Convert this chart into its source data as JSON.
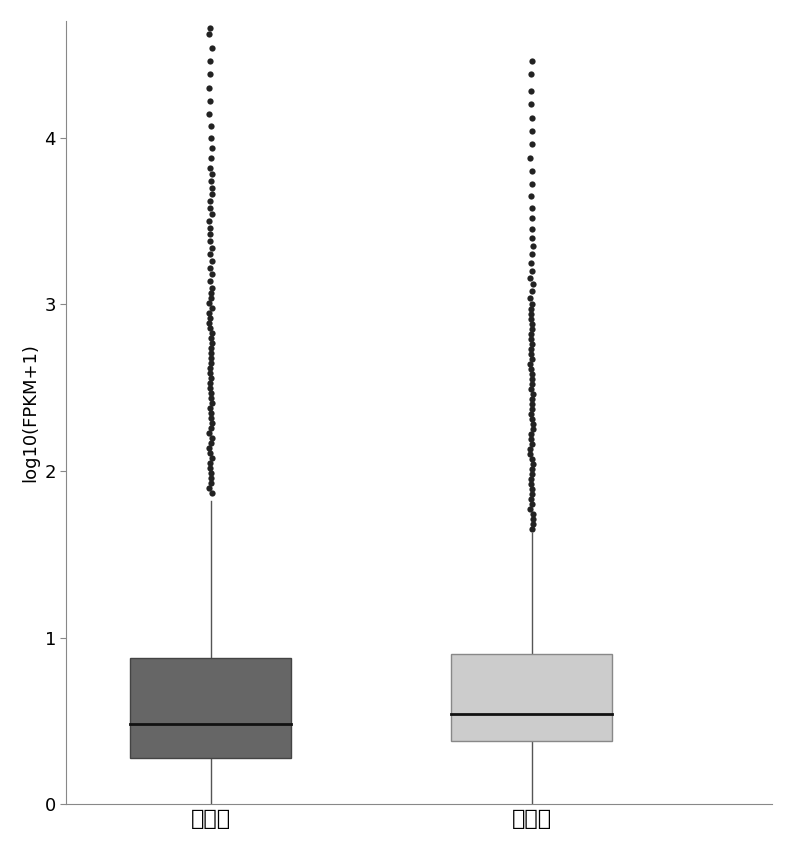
{
  "categories": [
    "感染组",
    "对照组"
  ],
  "ylabel": "log10(FPKM+1)",
  "ylim": [
    0,
    4.7
  ],
  "yticks": [
    0,
    1,
    2,
    3,
    4
  ],
  "background_color": "#ffffff",
  "box1": {
    "q1": 0.28,
    "median": 0.48,
    "q3": 0.88,
    "whisker_low": 0.0,
    "whisker_high": 1.82,
    "color": "#666666",
    "edge_color": "#444444"
  },
  "box2": {
    "q1": 0.38,
    "median": 0.54,
    "q3": 0.9,
    "whisker_low": 0.0,
    "whisker_high": 1.63,
    "color": "#cccccc",
    "edge_color": "#888888"
  },
  "outliers1": [
    1.87,
    1.9,
    1.93,
    1.96,
    1.99,
    2.02,
    2.05,
    2.08,
    2.11,
    2.14,
    2.17,
    2.2,
    2.23,
    2.26,
    2.29,
    2.32,
    2.35,
    2.38,
    2.41,
    2.44,
    2.47,
    2.5,
    2.53,
    2.56,
    2.59,
    2.62,
    2.65,
    2.68,
    2.71,
    2.74,
    2.77,
    2.8,
    2.83,
    2.86,
    2.89,
    2.92,
    2.95,
    2.98,
    3.01,
    3.04,
    3.07,
    3.1,
    3.14,
    3.18,
    3.22,
    3.26,
    3.3,
    3.34,
    3.38,
    3.42,
    3.46,
    3.5,
    3.54,
    3.58,
    3.62,
    3.66,
    3.7,
    3.74,
    3.78,
    3.82,
    3.88,
    3.94,
    4.0,
    4.07,
    4.14,
    4.22,
    4.3,
    4.38,
    4.46,
    4.54,
    4.62,
    4.66
  ],
  "outliers2": [
    1.65,
    1.68,
    1.71,
    1.74,
    1.77,
    1.8,
    1.83,
    1.86,
    1.89,
    1.92,
    1.95,
    1.98,
    2.01,
    2.04,
    2.07,
    2.1,
    2.13,
    2.16,
    2.19,
    2.22,
    2.25,
    2.28,
    2.31,
    2.34,
    2.37,
    2.4,
    2.43,
    2.46,
    2.49,
    2.52,
    2.55,
    2.58,
    2.61,
    2.64,
    2.67,
    2.7,
    2.73,
    2.76,
    2.79,
    2.82,
    2.85,
    2.88,
    2.91,
    2.94,
    2.97,
    3.0,
    3.04,
    3.08,
    3.12,
    3.16,
    3.2,
    3.25,
    3.3,
    3.35,
    3.4,
    3.45,
    3.52,
    3.58,
    3.65,
    3.72,
    3.8,
    3.88,
    3.96,
    4.04,
    4.12,
    4.2,
    4.28,
    4.38,
    4.46
  ],
  "box_width": 0.5,
  "xlabel_fontsize": 16,
  "ylabel_fontsize": 13,
  "tick_fontsize": 13,
  "median_color": "#111111",
  "whisker_color": "#555555",
  "flier_color": "#222222",
  "flier_size": 4.5
}
